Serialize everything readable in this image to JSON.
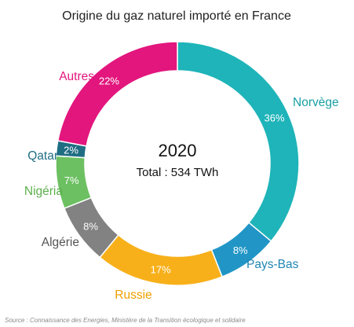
{
  "chart_data": {
    "type": "pie",
    "title": "Origine du gaz naturel importé en France",
    "center_year": "2020",
    "center_total": "Total : 534 TWh",
    "source": "Source : Connaissance des Energies, Ministère de la Transition écologique et solidaire",
    "slices": [
      {
        "name": "Norvège",
        "value": 36,
        "label": "36%",
        "color": "#1eb4b9",
        "label_color": "#1a9fa3",
        "pct_color": "#ffffff"
      },
      {
        "name": "Pays-Bas",
        "value": 8,
        "label": "8%",
        "color": "#2196c6",
        "label_color": "#1f86b3",
        "pct_color": "#ffffff"
      },
      {
        "name": "Russie",
        "value": 17,
        "label": "17%",
        "color": "#f8b01a",
        "label_color": "#ee9f00",
        "pct_color": "#ffffff"
      },
      {
        "name": "Algérie",
        "value": 8,
        "label": "8%",
        "color": "#828282",
        "label_color": "#555555",
        "pct_color": "#ffffff"
      },
      {
        "name": "Nigéria",
        "value": 7,
        "label": "7%",
        "color": "#6cc061",
        "label_color": "#5bb04c",
        "pct_color": "#ffffff"
      },
      {
        "name": "Qatar",
        "value": 2,
        "label": "2%",
        "color": "#1f6d83",
        "label_color": "#1f6d83",
        "pct_color": "#ffffff"
      },
      {
        "name": "Autres",
        "value": 22,
        "label": "22%",
        "color": "#e2167d",
        "label_color": "#e2167d",
        "pct_color": "#ffffff"
      }
    ]
  }
}
